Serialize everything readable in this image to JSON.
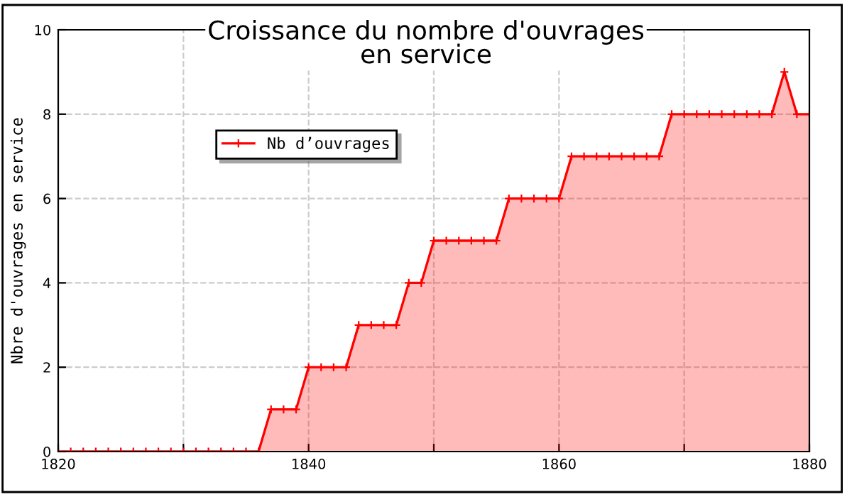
{
  "chart_data": {
    "type": "area",
    "title": "Croissance du nombre d'ouvrages\nen service",
    "ylabel": "Nbre d'ouvrages en service",
    "x": [
      1820,
      1821,
      1822,
      1823,
      1824,
      1825,
      1826,
      1827,
      1828,
      1829,
      1830,
      1831,
      1832,
      1833,
      1834,
      1835,
      1836,
      1837,
      1838,
      1839,
      1840,
      1841,
      1842,
      1843,
      1844,
      1845,
      1846,
      1847,
      1848,
      1849,
      1850,
      1851,
      1852,
      1853,
      1854,
      1855,
      1856,
      1857,
      1858,
      1859,
      1860,
      1861,
      1862,
      1863,
      1864,
      1865,
      1866,
      1867,
      1868,
      1869,
      1870,
      1871,
      1872,
      1873,
      1874,
      1875,
      1876,
      1877,
      1878,
      1879,
      1880
    ],
    "series": [
      {
        "name": "Nb d’ouvrages",
        "color": "#ff0000",
        "values": [
          0,
          0,
          0,
          0,
          0,
          0,
          0,
          0,
          0,
          0,
          0,
          0,
          0,
          0,
          0,
          0,
          0,
          1,
          1,
          1,
          2,
          2,
          2,
          2,
          3,
          3,
          3,
          3,
          4,
          4,
          5,
          5,
          5,
          5,
          5,
          5,
          6,
          6,
          6,
          6,
          6,
          7,
          7,
          7,
          7,
          7,
          7,
          7,
          7,
          8,
          8,
          8,
          8,
          8,
          8,
          8,
          8,
          8,
          9,
          8,
          8
        ]
      }
    ],
    "xlim": [
      1820,
      1880
    ],
    "ylim": [
      0,
      10
    ],
    "xticks": [
      1820,
      {
        "value": 1830,
        "label": null
      },
      1840,
      {
        "value": 1850,
        "label": null
      },
      1860,
      {
        "value": 1870,
        "label": null
      },
      1880
    ],
    "yticks": [
      0,
      2,
      4,
      6,
      8,
      10
    ],
    "grid": true,
    "legend": "top left",
    "marker": "cross",
    "line_style": "solid"
  }
}
